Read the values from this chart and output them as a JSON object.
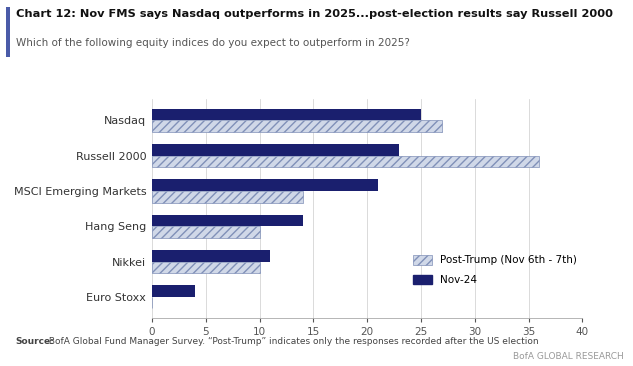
{
  "title": "Chart 12: Nov FMS says Nasdaq outperforms in 2025...post-election results say Russell 2000",
  "subtitle": "Which of the following equity indices do you expect to outperform in 2025?",
  "categories": [
    "Nasdaq",
    "Russell 2000",
    "MSCI Emerging Markets",
    "Hang Seng",
    "Nikkei",
    "Euro Stoxx"
  ],
  "post_trump_values": [
    27,
    36,
    14,
    10,
    10,
    0
  ],
  "nov24_values": [
    25,
    23,
    21,
    14,
    11,
    4
  ],
  "bar_color_solid": "#1a1f6e",
  "hatch_pattern": "////",
  "hatch_face_color": "#d0d8e8",
  "hatch_edge_color": "#8090b8",
  "xlim": [
    0,
    40
  ],
  "xticks": [
    0,
    5,
    10,
    15,
    20,
    25,
    30,
    35,
    40
  ],
  "legend_post_trump": "Post-Trump (Nov 6th - 7th)",
  "legend_nov24": "Nov-24",
  "source_bold": "Source:",
  "source_rest": " BofA Global Fund Manager Survey. “Post-Trump” indicates only the responses recorded after the US election",
  "branding": "BofA GLOBAL RESEARCH",
  "accent_color": "#4a5ba8"
}
